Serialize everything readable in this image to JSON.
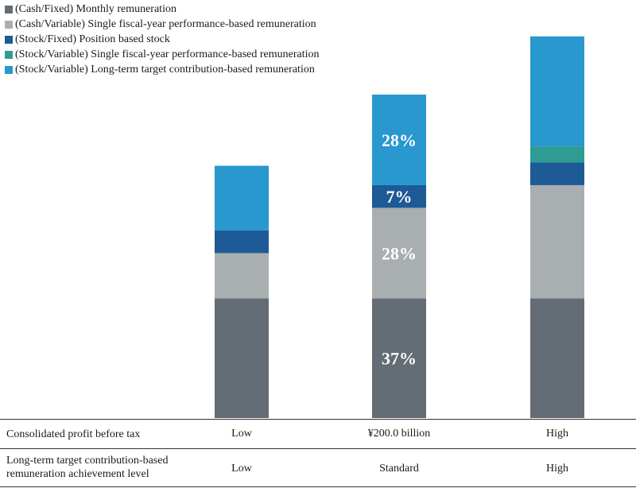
{
  "chart_data": {
    "type": "bar",
    "stacked": true,
    "categories": [
      "Low",
      "¥200.0 billion",
      "High"
    ],
    "series": [
      {
        "name": "(Cash/Fixed) Monthly remuneration",
        "color": "#646c75",
        "values": [
          37,
          37,
          37
        ],
        "labels": [
          "",
          "37%",
          ""
        ]
      },
      {
        "name": "(Cash/Variable)  Single fiscal-year performance-based remuneration",
        "color": "#a9aeb0",
        "values": [
          14,
          28,
          35
        ],
        "labels": [
          "",
          "28%",
          ""
        ]
      },
      {
        "name": "(Stock/Fixed) Position based stock",
        "color": "#1d5a96",
        "values": [
          7,
          7,
          7
        ],
        "labels": [
          "",
          "7%",
          ""
        ]
      },
      {
        "name": "(Stock/Variable)  Single fiscal-year performance-based remuneration",
        "color": "#2e9c93",
        "values": [
          0,
          0,
          5
        ],
        "labels": [
          "",
          "",
          ""
        ]
      },
      {
        "name": "(Stock/Variable)  Long-term target contribution-based remuneration",
        "color": "#2898cf",
        "values": [
          20,
          28,
          34
        ],
        "labels": [
          "",
          "28%",
          ""
        ]
      }
    ],
    "ylim": [
      0,
      120
    ],
    "grid": false,
    "legend_position": "top-left"
  },
  "table": {
    "rows": [
      {
        "label": "Consolidated profit before tax",
        "cells": [
          "Low",
          "¥200.0 billion",
          "High"
        ]
      },
      {
        "label": "Long-term target contribution-based remuneration achievement level",
        "cells": [
          "Low",
          "Standard",
          "High"
        ]
      }
    ]
  }
}
